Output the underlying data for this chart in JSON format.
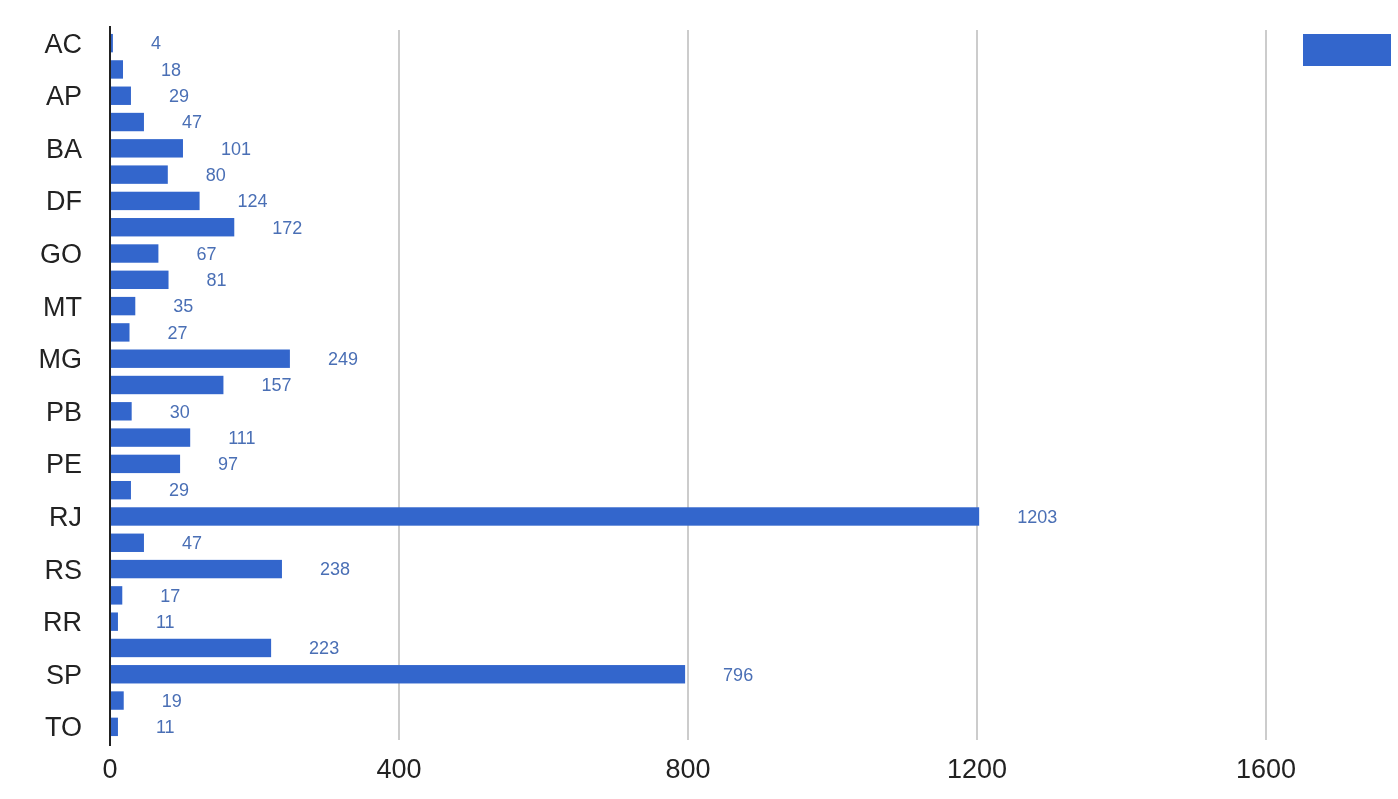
{
  "chart_data": {
    "type": "bar",
    "orientation": "horizontal",
    "categories": [
      "AC",
      null,
      "AP",
      null,
      "BA",
      null,
      "DF",
      null,
      "GO",
      null,
      "MT",
      null,
      "MG",
      null,
      "PB",
      null,
      "PE",
      null,
      "RJ",
      null,
      "RS",
      null,
      "RR",
      null,
      "SP",
      null,
      "TO"
    ],
    "series": [
      {
        "color": "#3366cc",
        "values": [
          4,
          18,
          29,
          47,
          101,
          80,
          124,
          172,
          67,
          81,
          35,
          27,
          249,
          157,
          30,
          111,
          97,
          29,
          1203,
          47,
          238,
          17,
          11,
          223,
          796,
          19,
          11
        ]
      }
    ],
    "xlim": [
      0,
      1600
    ],
    "xticks": [
      0,
      400,
      800,
      1200,
      1600
    ],
    "grid": "x",
    "data_labels": true
  }
}
